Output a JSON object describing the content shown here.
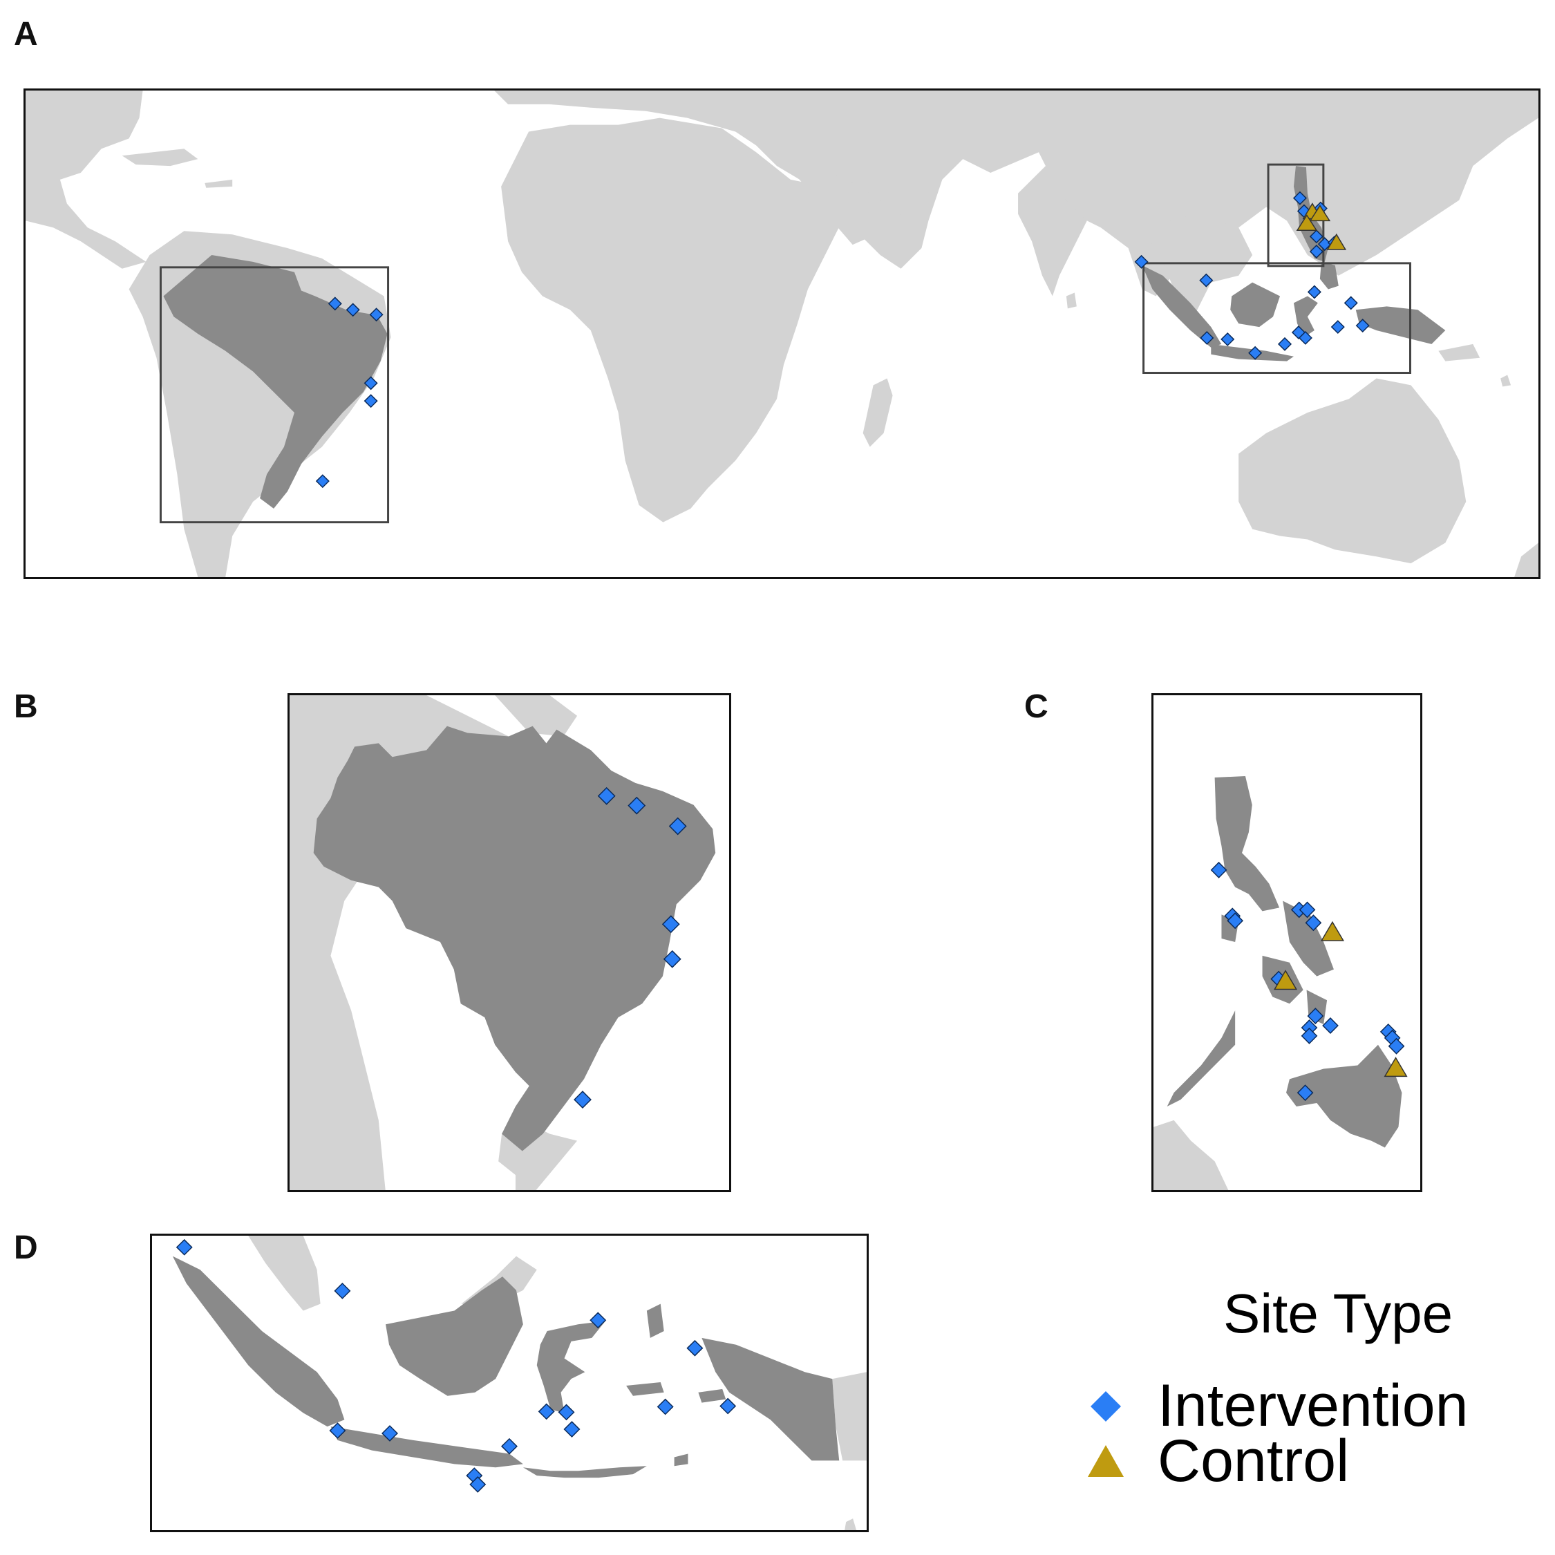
{
  "panels": {
    "a": {
      "label": "A"
    },
    "b": {
      "label": "B"
    },
    "c": {
      "label": "C"
    },
    "d": {
      "label": "D"
    }
  },
  "colors": {
    "land": "#d3d3d3",
    "focus_country": "#8a8a8a",
    "intervention": "#2a7ef5",
    "control": "#bf9b10",
    "frame": "#111111"
  },
  "legend": {
    "title": "Site Type",
    "items": [
      {
        "label": "Intervention",
        "symbol": "blue-diamond"
      },
      {
        "label": "Control",
        "symbol": "gold-triangle"
      }
    ]
  },
  "map_info": {
    "focus_countries": [
      "Brazil",
      "Philippines",
      "Indonesia"
    ],
    "site_counts": {
      "brazil": {
        "intervention": 6,
        "control": 0
      },
      "philippines": {
        "intervention": 14,
        "control": 3
      },
      "indonesia": {
        "intervention": 13,
        "control": 0
      }
    }
  }
}
